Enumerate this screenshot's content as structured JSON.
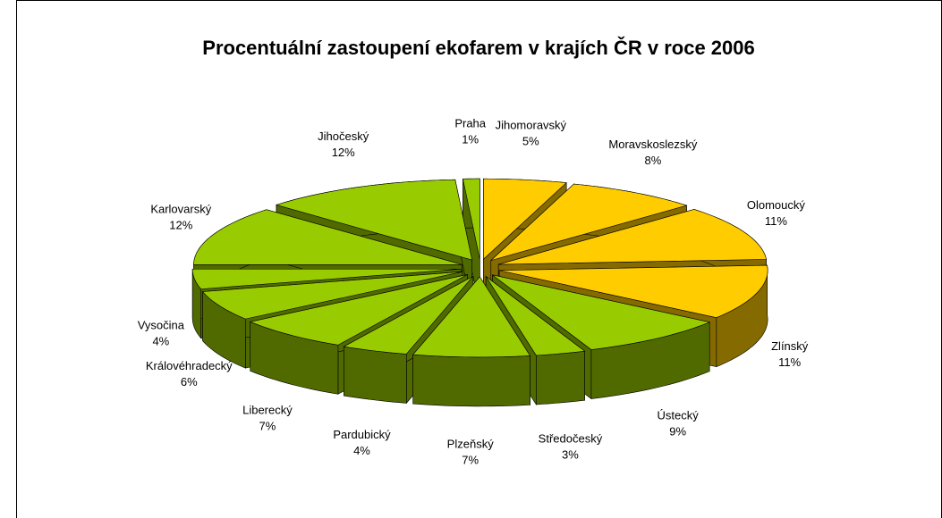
{
  "chart_data": {
    "type": "pie",
    "title": "Procentuální zastoupení ekofarem v krajích ČR v roce 2006",
    "categories": [
      "Jihomoravský",
      "Moravskoslezský",
      "Olomoucký",
      "Zlínský",
      "Ústecký",
      "Středočeský",
      "Plzeňský",
      "Pardubický",
      "Liberecký",
      "Královéhradecký",
      "Vysočina",
      "Karlovarský",
      "Jihočeský",
      "Praha"
    ],
    "values": [
      5,
      8,
      11,
      11,
      9,
      3,
      7,
      4,
      7,
      6,
      4,
      12,
      12,
      1
    ],
    "value_labels": [
      "5%",
      "8%",
      "11%",
      "11%",
      "9%",
      "3%",
      "7%",
      "4%",
      "7%",
      "6%",
      "4%",
      "12%",
      "12%",
      "1%"
    ],
    "colors": [
      "#ffcc00",
      "#ffcc00",
      "#ffcc00",
      "#ffcc00",
      "#99cc00",
      "#99cc00",
      "#99cc00",
      "#99cc00",
      "#99cc00",
      "#99cc00",
      "#99cc00",
      "#99cc00",
      "#99cc00",
      "#99cc00"
    ]
  }
}
